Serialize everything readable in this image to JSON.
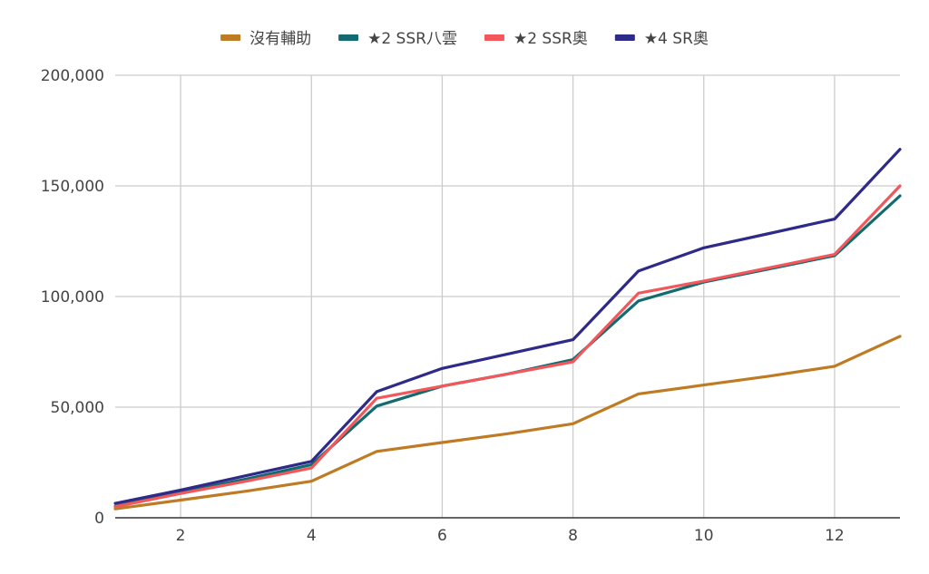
{
  "chart_data": {
    "type": "line",
    "title": "",
    "xlabel": "",
    "ylabel": "",
    "x": [
      1,
      2,
      3,
      4,
      5,
      6,
      7,
      8,
      9,
      10,
      11,
      12,
      13
    ],
    "xlim": [
      1,
      13
    ],
    "ylim": [
      0,
      200000
    ],
    "x_ticks": [
      2,
      4,
      6,
      8,
      10,
      12
    ],
    "x_tick_labels": [
      "2",
      "4",
      "6",
      "8",
      "10",
      "12"
    ],
    "y_ticks": [
      0,
      50000,
      100000,
      150000,
      200000
    ],
    "y_tick_labels": [
      "0",
      "50,000",
      "100,000",
      "150,000",
      "200,000"
    ],
    "grid": true,
    "legend_position": "top",
    "series": [
      {
        "name": "沒有輔助",
        "color": "#bf7b24",
        "values": [
          4000,
          8000,
          12000,
          16500,
          30000,
          34000,
          38000,
          42500,
          56000,
          60000,
          64000,
          68500,
          82000
        ]
      },
      {
        "name": "★2 SSR八雲",
        "color": "#136a6f",
        "values": [
          5200,
          11500,
          17500,
          24000,
          50500,
          59500,
          65000,
          71500,
          98000,
          106500,
          112500,
          118500,
          145500
        ]
      },
      {
        "name": "★2 SSR奧",
        "color": "#f2585b",
        "values": [
          5000,
          11000,
          16500,
          22500,
          54000,
          59500,
          65000,
          70500,
          101500,
          107000,
          113000,
          119000,
          150000
        ]
      },
      {
        "name": "★4 SR奧",
        "color": "#2e2a89",
        "values": [
          6500,
          12500,
          19000,
          25500,
          57000,
          67500,
          74000,
          80500,
          111500,
          122000,
          128500,
          135000,
          166500
        ]
      }
    ]
  }
}
